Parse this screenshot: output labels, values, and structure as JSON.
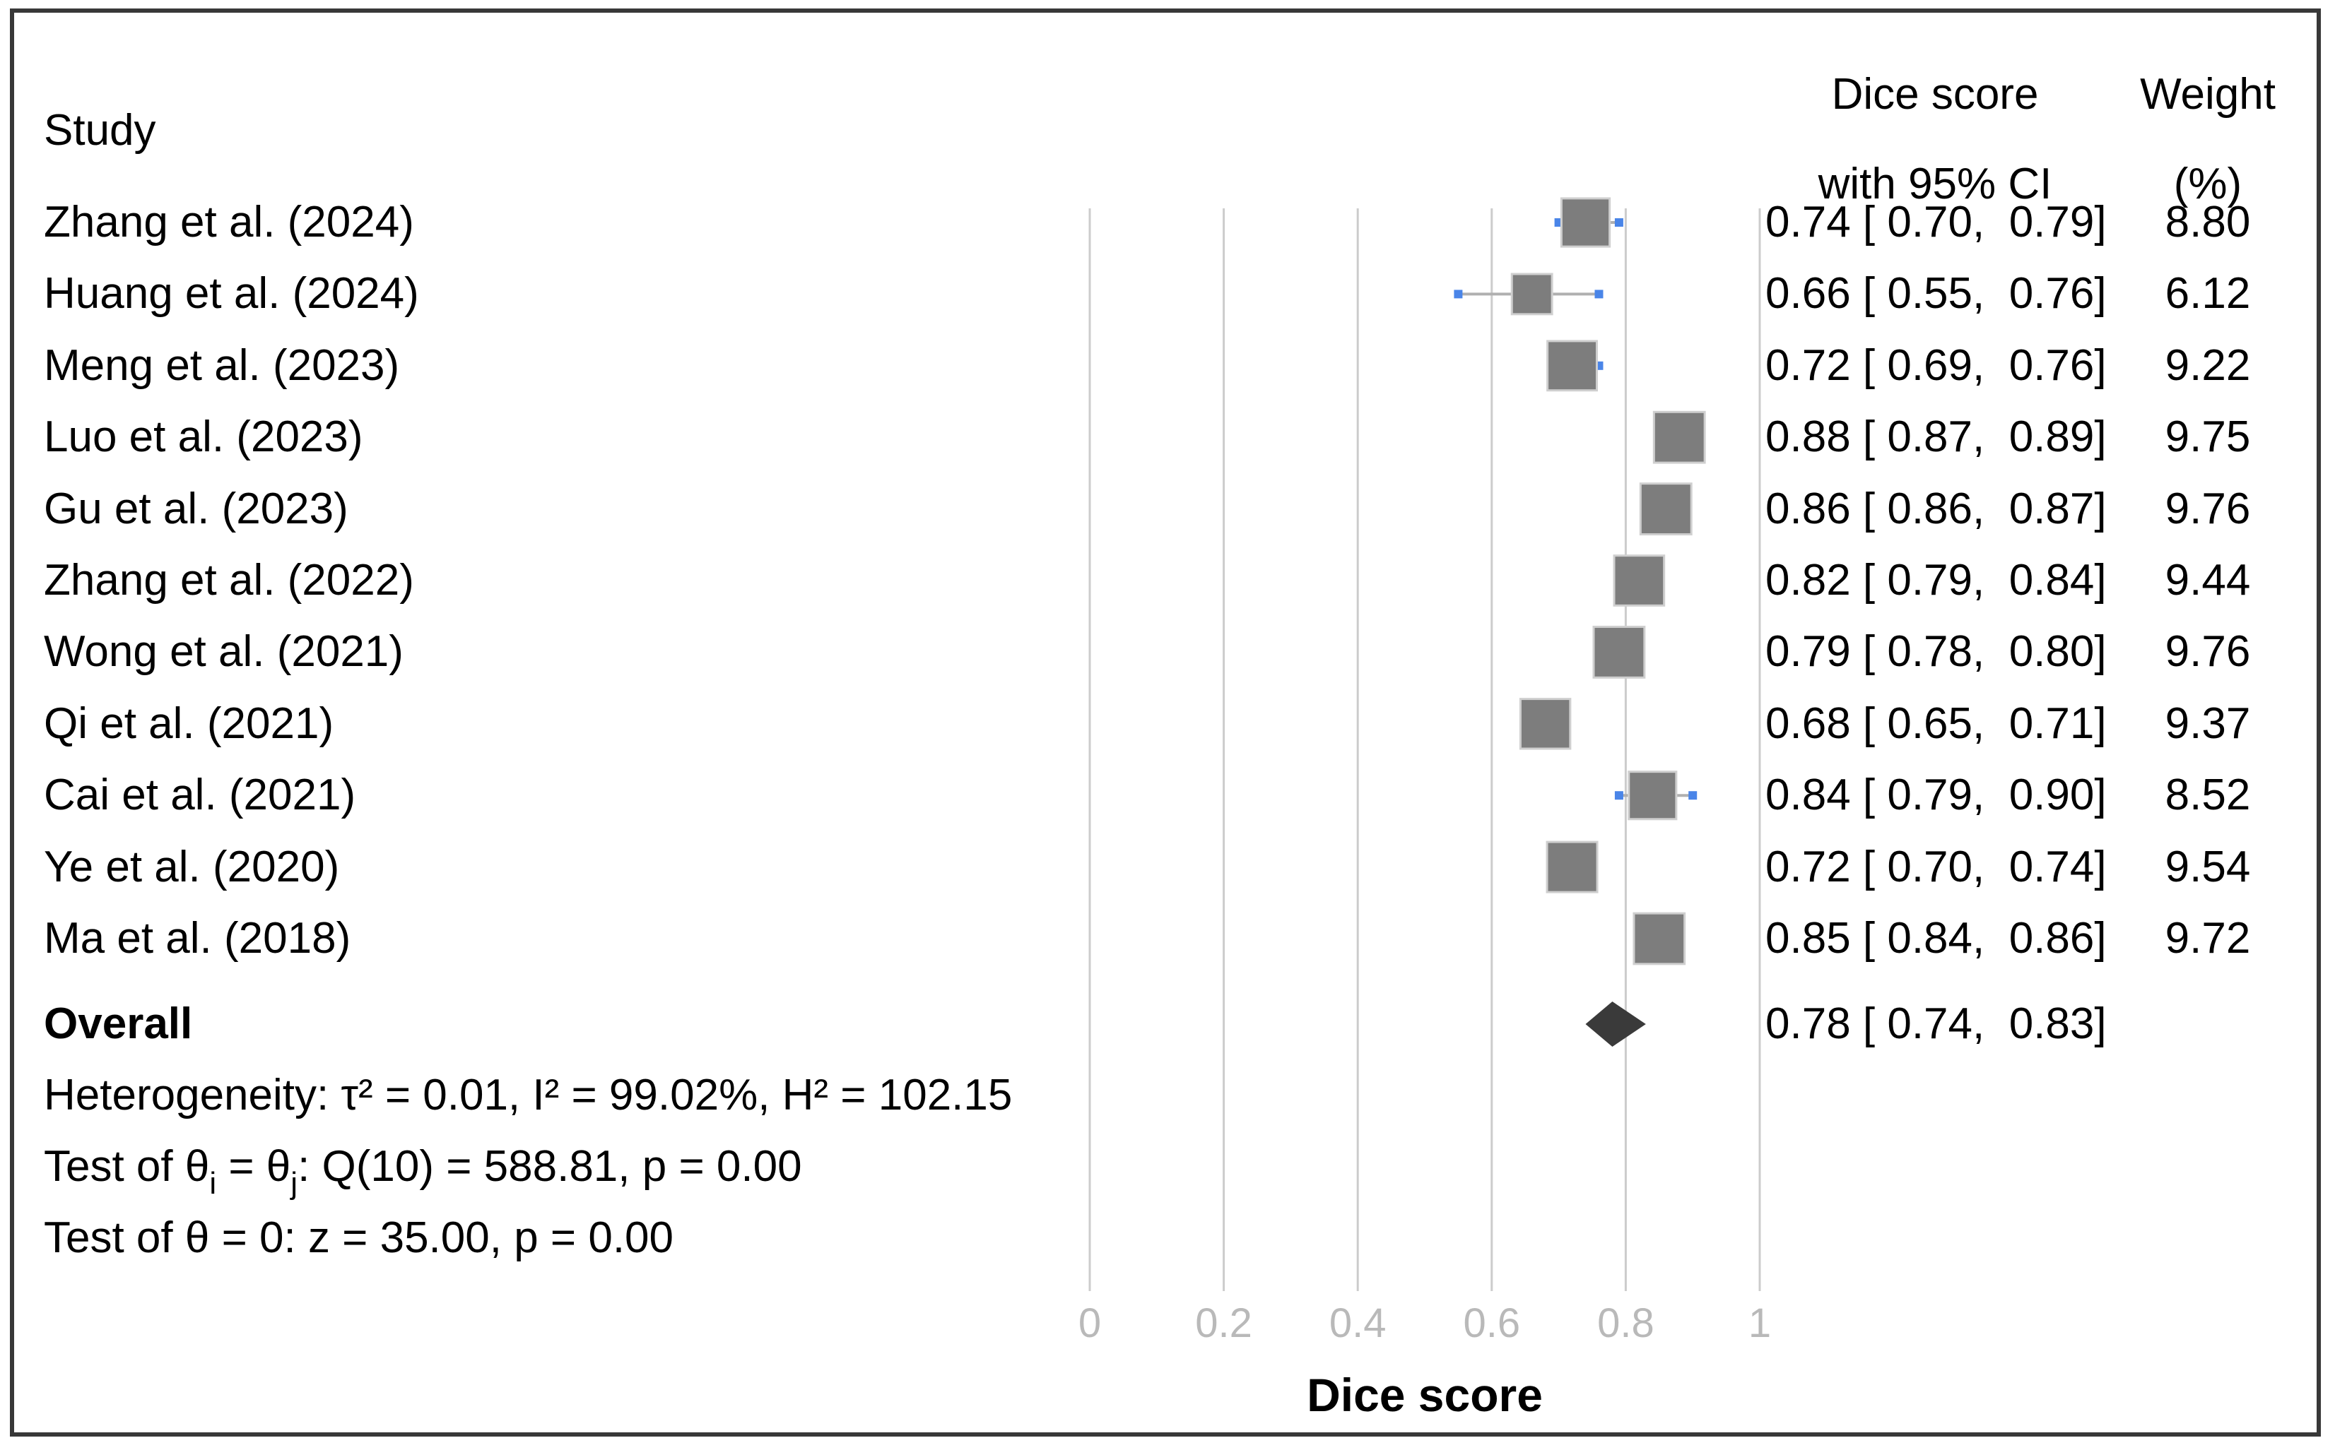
{
  "headers": {
    "study": "Study",
    "effect_line1": "Dice score",
    "effect_line2": "with 95% CI",
    "weight_line1": "Weight",
    "weight_line2": "(%)"
  },
  "chart_data": {
    "type": "forest",
    "xlabel": "Dice score",
    "xlim": [
      0,
      1
    ],
    "x_ticks": [
      0,
      0.2,
      0.4,
      0.6,
      0.8,
      1
    ],
    "x_tick_labels": [
      "0",
      "0.2",
      "0.4",
      "0.6",
      "0.8",
      "1"
    ],
    "grid": true,
    "studies": [
      {
        "label": "Zhang et al. (2024)",
        "estimate": 0.74,
        "ci_low": 0.7,
        "ci_high": 0.79,
        "weight": 8.8,
        "ci_text": "0.74 [ 0.70,  0.79]",
        "weight_text": "8.80"
      },
      {
        "label": "Huang et al. (2024)",
        "estimate": 0.66,
        "ci_low": 0.55,
        "ci_high": 0.76,
        "weight": 6.12,
        "ci_text": "0.66 [ 0.55,  0.76]",
        "weight_text": "6.12"
      },
      {
        "label": "Meng et al. (2023)",
        "estimate": 0.72,
        "ci_low": 0.69,
        "ci_high": 0.76,
        "weight": 9.22,
        "ci_text": "0.72 [ 0.69,  0.76]",
        "weight_text": "9.22"
      },
      {
        "label": "Luo et al. (2023)",
        "estimate": 0.88,
        "ci_low": 0.87,
        "ci_high": 0.89,
        "weight": 9.75,
        "ci_text": "0.88 [ 0.87,  0.89]",
        "weight_text": "9.75"
      },
      {
        "label": "Gu et al. (2023)",
        "estimate": 0.86,
        "ci_low": 0.86,
        "ci_high": 0.87,
        "weight": 9.76,
        "ci_text": "0.86 [ 0.86,  0.87]",
        "weight_text": "9.76"
      },
      {
        "label": "Zhang et al. (2022)",
        "estimate": 0.82,
        "ci_low": 0.79,
        "ci_high": 0.84,
        "weight": 9.44,
        "ci_text": "0.82 [ 0.79,  0.84]",
        "weight_text": "9.44"
      },
      {
        "label": "Wong et al. (2021)",
        "estimate": 0.79,
        "ci_low": 0.78,
        "ci_high": 0.8,
        "weight": 9.76,
        "ci_text": "0.79 [ 0.78,  0.80]",
        "weight_text": "9.76"
      },
      {
        "label": "Qi et al. (2021)",
        "estimate": 0.68,
        "ci_low": 0.65,
        "ci_high": 0.71,
        "weight": 9.37,
        "ci_text": "0.68 [ 0.65,  0.71]",
        "weight_text": "9.37"
      },
      {
        "label": "Cai et al. (2021)",
        "estimate": 0.84,
        "ci_low": 0.79,
        "ci_high": 0.9,
        "weight": 8.52,
        "ci_text": "0.84 [ 0.79,  0.90]",
        "weight_text": "8.52"
      },
      {
        "label": "Ye et al. (2020)",
        "estimate": 0.72,
        "ci_low": 0.7,
        "ci_high": 0.74,
        "weight": 9.54,
        "ci_text": "0.72 [ 0.70,  0.74]",
        "weight_text": "9.54"
      },
      {
        "label": "Ma et al. (2018)",
        "estimate": 0.85,
        "ci_low": 0.84,
        "ci_high": 0.86,
        "weight": 9.72,
        "ci_text": "0.85 [ 0.84,  0.86]",
        "weight_text": "9.72"
      }
    ],
    "overall": {
      "label": "Overall",
      "estimate": 0.78,
      "ci_low": 0.74,
      "ci_high": 0.83,
      "ci_text": "0.78 [ 0.74,  0.83]"
    }
  },
  "footer": {
    "heterogeneity": "Heterogeneity: τ² = 0.01, I² = 99.02%, H² = 102.15",
    "test_between_pre": "Test of θ",
    "test_between_sub1": "i",
    "test_between_mid": " = θ",
    "test_between_sub2": "j",
    "test_between_post": ": Q(10) = 588.81, p = 0.00",
    "test_zero": "Test of θ = 0: z = 35.00, p = 0.00"
  },
  "colors": {
    "marker_fill": "#7d7d7d",
    "marker_stroke": "#cfcfcf",
    "ci_line": "#b0b0b0",
    "ci_cap": "#4a85e8",
    "diamond": "#3a3a3a",
    "gridline": "#cccccc",
    "tick_label": "#b9b9b9",
    "frame": "#383838",
    "text": "#000000"
  }
}
